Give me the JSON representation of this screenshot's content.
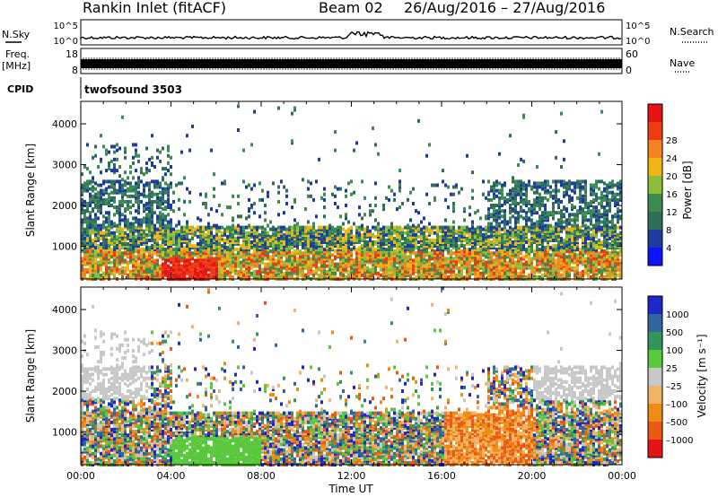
{
  "header": {
    "title": "Rankin Inlet (fitACF)",
    "beam": "Beam 02",
    "date_range": "26/Aug/2016 – 27/Aug/2016"
  },
  "noise_panel": {
    "left_label": "N.Sky",
    "right_label": "N.Search",
    "left_ticks": [
      "10^5",
      "10^0"
    ],
    "right_ticks": [
      "10^5",
      "10^0"
    ]
  },
  "freq_panel": {
    "left_label_line1": "Freq.",
    "left_label_line2": "[MHz]",
    "right_label": "Nave",
    "left_ticks": [
      "18",
      "8"
    ],
    "right_ticks": [
      "60",
      "0"
    ]
  },
  "cpid_panel": {
    "label": "CPID",
    "text": "twofsound 3503"
  },
  "colors": {
    "power": [
      "#0a14ff",
      "#1e3ca0",
      "#2f6e5a",
      "#3c8c50",
      "#8cbe3c",
      "#f0b414",
      "#f5821e",
      "#eb3c14",
      "#e61414"
    ],
    "velocity": [
      "#1e28c8",
      "#3264a0",
      "#32965a",
      "#5ac83c",
      "#c8c8c8",
      "#f0b464",
      "#f08c14",
      "#eb5a14",
      "#e61414"
    ]
  },
  "chart_data": [
    {
      "type": "heatmap",
      "name": "power",
      "ylabel": "Slant Range [km]",
      "xlabel": "",
      "x_ticks": [
        "00:00",
        "04:00",
        "08:00",
        "12:00",
        "16:00",
        "20:00",
        "00:00"
      ],
      "y_ticks": [
        "1000",
        "2000",
        "3000",
        "4000"
      ],
      "ylim": [
        200,
        4550
      ],
      "xlim": [
        0,
        24
      ],
      "colorbar": {
        "label": "Power [dB]",
        "ticks": [
          "4",
          "8",
          "12",
          "16",
          "20",
          "24",
          "28"
        ],
        "range": [
          0,
          32
        ]
      }
    },
    {
      "type": "heatmap",
      "name": "velocity",
      "ylabel": "Slant Range [km]",
      "xlabel": "Time UT",
      "x_ticks": [
        "00:00",
        "04:00",
        "08:00",
        "12:00",
        "16:00",
        "20:00",
        "00:00"
      ],
      "y_ticks": [
        "1000",
        "2000",
        "3000",
        "4000"
      ],
      "ylim": [
        200,
        4550
      ],
      "xlim": [
        0,
        24
      ],
      "colorbar": {
        "label": "Velocity [m s⁻¹]",
        "ticks": [
          "1000",
          "500",
          "100",
          "25",
          "–25",
          "–100",
          "–500",
          "–1000"
        ]
      }
    }
  ]
}
